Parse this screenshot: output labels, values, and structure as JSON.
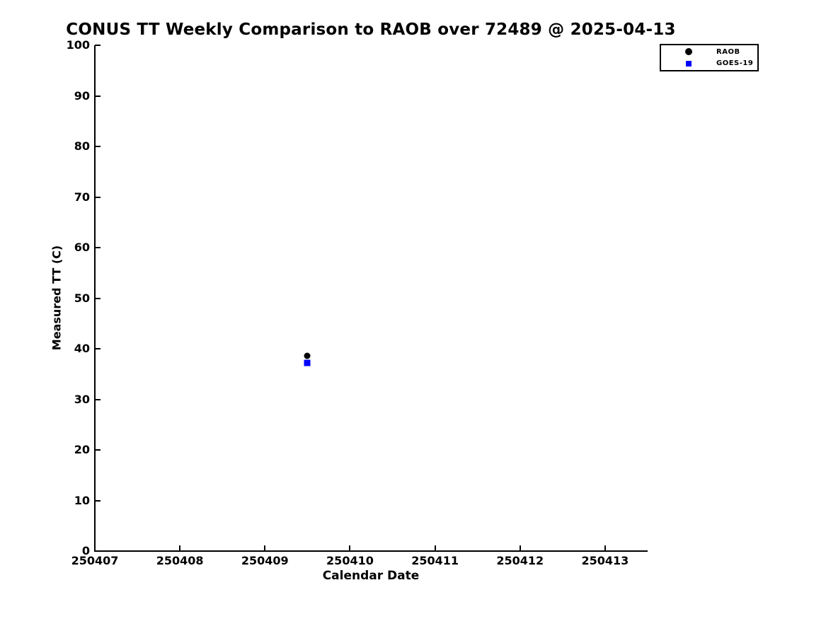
{
  "page": {
    "background_color": "#ffffff",
    "text_color": "#000000"
  },
  "chart_data": {
    "type": "scatter",
    "title": "CONUS TT Weekly Comparison to RAOB over 72489 @ 2025-04-13",
    "xlabel": "Calendar Date",
    "ylabel": "Measured TT (C)",
    "xlim": [
      250407,
      250413.5
    ],
    "ylim": [
      0,
      100
    ],
    "x_ticks": [
      {
        "value": 250407,
        "label": "250407"
      },
      {
        "value": 250408,
        "label": "250408"
      },
      {
        "value": 250409,
        "label": "250409"
      },
      {
        "value": 250410,
        "label": "250410"
      },
      {
        "value": 250411,
        "label": "250411"
      },
      {
        "value": 250412,
        "label": "250412"
      },
      {
        "value": 250413,
        "label": "250413"
      }
    ],
    "y_ticks": [
      {
        "value": 0,
        "label": "0"
      },
      {
        "value": 10,
        "label": "10"
      },
      {
        "value": 20,
        "label": "20"
      },
      {
        "value": 30,
        "label": "30"
      },
      {
        "value": 40,
        "label": "40"
      },
      {
        "value": 50,
        "label": "50"
      },
      {
        "value": 60,
        "label": "60"
      },
      {
        "value": 70,
        "label": "70"
      },
      {
        "value": 80,
        "label": "80"
      },
      {
        "value": 90,
        "label": "90"
      },
      {
        "value": 100,
        "label": "100"
      }
    ],
    "grid": false,
    "tick_direction": "in",
    "legend_position": "outside-top-right",
    "series": [
      {
        "name": "RAOB",
        "marker": "circle",
        "color": "#000000",
        "marker_size": 9,
        "points": [
          {
            "x": 250409.5,
            "y": 38.6
          }
        ]
      },
      {
        "name": "GOES-19",
        "marker": "square",
        "color": "#0000ff",
        "marker_size": 9,
        "points": [
          {
            "x": 250409.5,
            "y": 37.2
          }
        ]
      }
    ]
  }
}
